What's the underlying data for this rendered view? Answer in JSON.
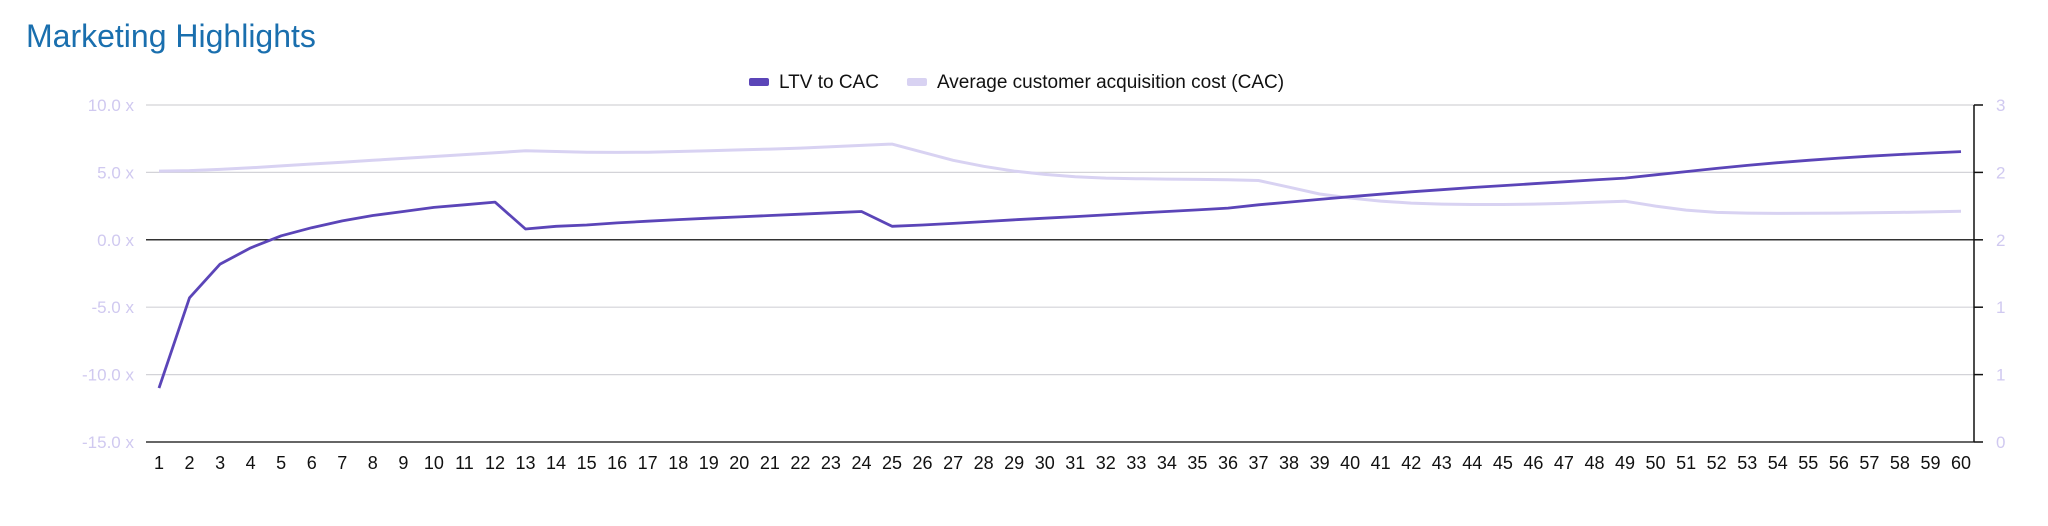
{
  "page": {
    "title": "Marketing Highlights"
  },
  "colors": {
    "title": "#1a6fae",
    "ltv_series": "#5b45b8",
    "cac_series": "#d8d2f2",
    "left_tick_labels": "#d0c9f0",
    "right_tick_labels": "#d0c9f0",
    "gridline": "#d3d3d8",
    "zero_line": "#333333"
  },
  "chart_data": {
    "type": "line",
    "title": "",
    "xlabel": "",
    "ylabel": "",
    "y2label": "",
    "legend": {
      "position": "top-center"
    },
    "grid": true,
    "x": [
      1,
      2,
      3,
      4,
      5,
      6,
      7,
      8,
      9,
      10,
      11,
      12,
      13,
      14,
      15,
      16,
      17,
      18,
      19,
      20,
      21,
      22,
      23,
      24,
      25,
      26,
      27,
      28,
      29,
      30,
      31,
      32,
      33,
      34,
      35,
      36,
      37,
      38,
      39,
      40,
      41,
      42,
      43,
      44,
      45,
      46,
      47,
      48,
      49,
      50,
      51,
      52,
      53,
      54,
      55,
      56,
      57,
      58,
      59,
      60
    ],
    "ylim": [
      -15,
      10
    ],
    "y_ticks": [
      10,
      5,
      0,
      -5,
      -10,
      -15
    ],
    "y_tick_labels": [
      "10.0 x",
      "5.0 x",
      "0.0 x",
      "-5.0 x",
      "-10.0 x",
      "-15.0 x"
    ],
    "y2lim": [
      0,
      2.5
    ],
    "y2_ticks": [
      2.5,
      2.0,
      1.5,
      1.0,
      0.5,
      0
    ],
    "y2_tick_labels": [
      "3",
      "2",
      "2",
      "1",
      "1",
      "0"
    ],
    "series": [
      {
        "name": "LTV to CAC",
        "axis": "left",
        "values": [
          -11.0,
          -4.3,
          -1.8,
          -0.6,
          0.3,
          0.9,
          1.4,
          1.8,
          2.1,
          2.4,
          2.6,
          2.8,
          0.8,
          1.0,
          1.1,
          1.25,
          1.38,
          1.5,
          1.6,
          1.7,
          1.8,
          1.9,
          2.0,
          2.1,
          1.0,
          1.1,
          1.22,
          1.35,
          1.48,
          1.6,
          1.72,
          1.85,
          1.98,
          2.1,
          2.22,
          2.35,
          2.6,
          2.8,
          3.0,
          3.2,
          3.38,
          3.56,
          3.72,
          3.88,
          4.02,
          4.16,
          4.3,
          4.44,
          4.58,
          4.82,
          5.06,
          5.3,
          5.52,
          5.72,
          5.9,
          6.06,
          6.2,
          6.33,
          6.44,
          6.54
        ]
      },
      {
        "name": "Average customer acquisition cost (CAC)",
        "axis": "right",
        "values": [
          2.01,
          2.013,
          2.022,
          2.034,
          2.048,
          2.062,
          2.076,
          2.09,
          2.104,
          2.118,
          2.132,
          2.146,
          2.16,
          2.155,
          2.15,
          2.148,
          2.15,
          2.155,
          2.16,
          2.167,
          2.173,
          2.18,
          2.19,
          2.2,
          2.21,
          2.15,
          2.09,
          2.045,
          2.01,
          1.985,
          1.968,
          1.958,
          1.953,
          1.95,
          1.948,
          1.946,
          1.94,
          1.89,
          1.84,
          1.81,
          1.787,
          1.772,
          1.765,
          1.762,
          1.762,
          1.765,
          1.77,
          1.778,
          1.786,
          1.75,
          1.72,
          1.703,
          1.698,
          1.696,
          1.697,
          1.698,
          1.7,
          1.703,
          1.707,
          1.712
        ]
      }
    ]
  }
}
